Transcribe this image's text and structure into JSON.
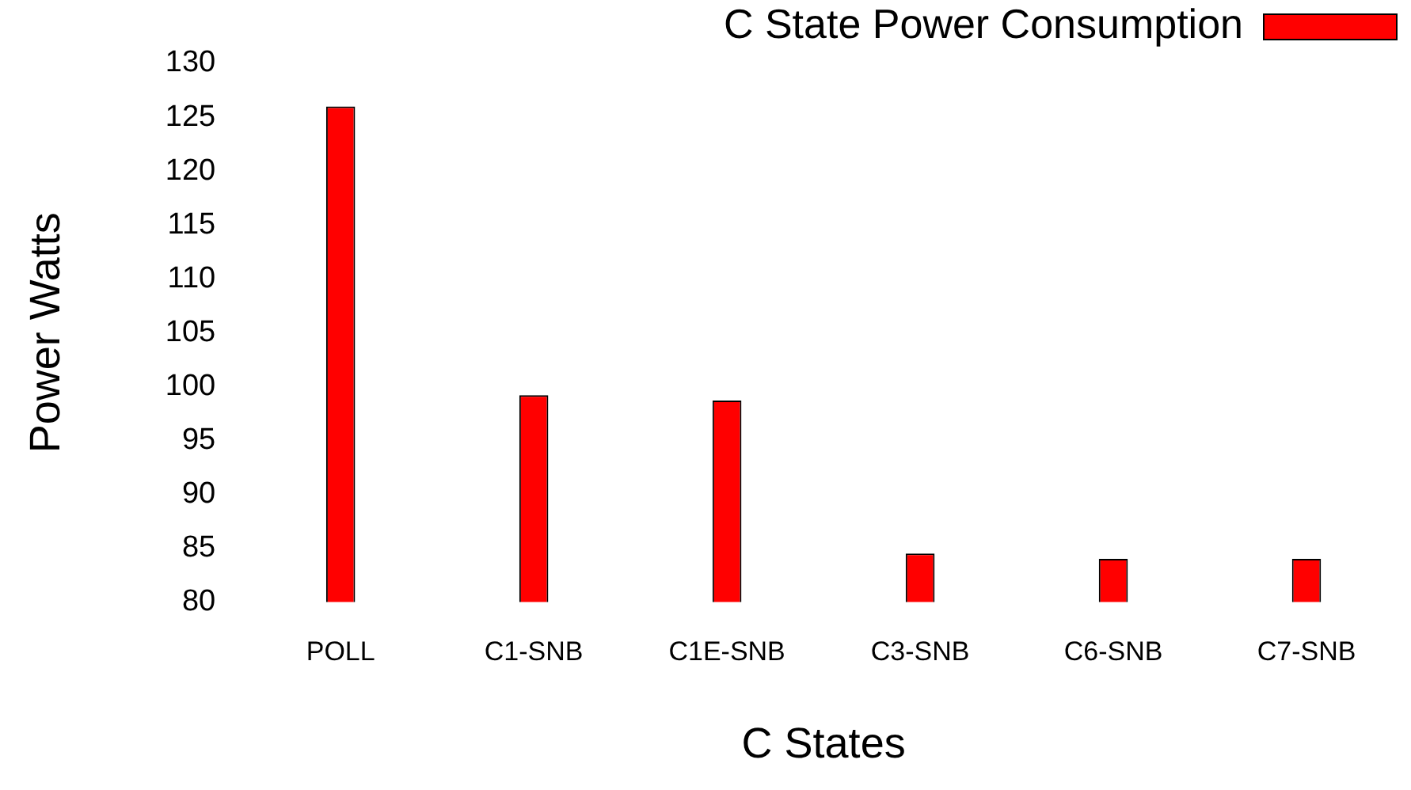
{
  "chart_data": {
    "type": "bar",
    "xlabel": "C States",
    "ylabel": "Power Watts",
    "categories": [
      "POLL",
      "C1-SNB",
      "C1E-SNB",
      "C3-SNB",
      "C6-SNB",
      "C7-SNB"
    ],
    "series": [
      {
        "name": "C State Power Consumption",
        "color": "#ff0000",
        "values": [
          126,
          99.2,
          98.7,
          84.5,
          84,
          84
        ]
      }
    ],
    "ylim": [
      80,
      130
    ],
    "yticks": [
      80,
      85,
      90,
      95,
      100,
      105,
      110,
      115,
      120,
      125,
      130
    ],
    "grid": false,
    "legend": "top right"
  }
}
